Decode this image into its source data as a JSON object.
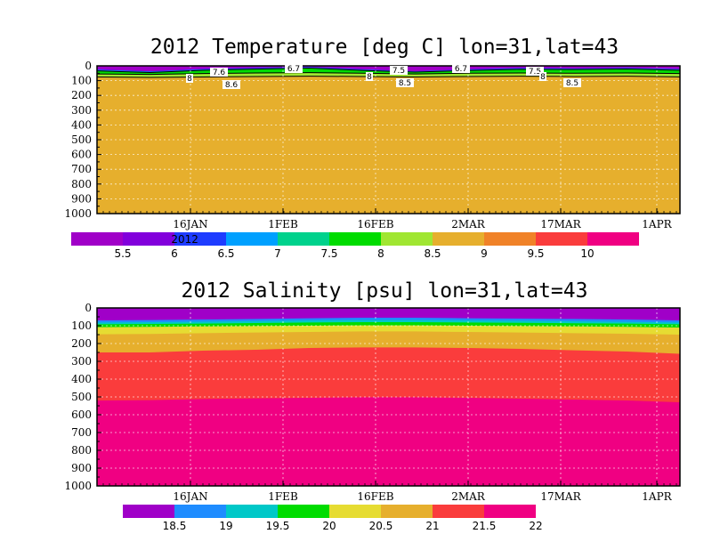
{
  "chart_data": [
    {
      "type": "heatmap",
      "title": "2012 Temperature [deg C] lon=31,lat=43",
      "xlabel": "",
      "ylabel": "",
      "x_tick_labels": [
        "16JAN",
        "1FEB",
        "16FEB",
        "2MAR",
        "17MAR",
        "1APR"
      ],
      "y_tick_labels": [
        "0",
        "100",
        "200",
        "300",
        "400",
        "500",
        "600",
        "700",
        "800",
        "900",
        "1000"
      ],
      "ylim": [
        1000,
        0
      ],
      "grid": true,
      "colorbar": {
        "colors": [
          "#a000c8",
          "#8200dc",
          "#1e3cff",
          "#00a0ff",
          "#00d28c",
          "#00dc00",
          "#a0e632",
          "#e6af2d",
          "#f08228",
          "#fa3c3c",
          "#f00082"
        ],
        "labels": [
          "5.5",
          "6",
          "6.5",
          "7",
          "7.5",
          "8",
          "8.5",
          "9",
          "9.5",
          "10"
        ],
        "inline_label": "2012"
      },
      "layers": [
        {
          "value": "<5.5",
          "color": "#a000c8",
          "boundary_depth": [
            20,
            35,
            18,
            10,
            5,
            20,
            35,
            20,
            12,
            15,
            10,
            20
          ]
        },
        {
          "value": "5.5-6",
          "color": "#8200dc",
          "boundary_depth": [
            25,
            38,
            22,
            14,
            8,
            23,
            37,
            24,
            15,
            18,
            14,
            22
          ]
        },
        {
          "value": "6-6.5",
          "color": "#1e3cff",
          "boundary_depth": [
            28,
            40,
            25,
            17,
            10,
            26,
            38,
            27,
            18,
            20,
            16,
            24
          ]
        },
        {
          "value": "6.5-7",
          "color": "#00a0ff",
          "boundary_depth": [
            30,
            42,
            27,
            19,
            12,
            28,
            40,
            29,
            20,
            22,
            18,
            26
          ]
        },
        {
          "value": "7-7.5",
          "color": "#00d28c",
          "boundary_depth": [
            34,
            45,
            30,
            22,
            15,
            31,
            42,
            32,
            23,
            25,
            21,
            30
          ]
        },
        {
          "value": "7.5-8",
          "color": "#00dc00",
          "boundary_depth": [
            55,
            58,
            52,
            48,
            46,
            50,
            55,
            50,
            48,
            50,
            48,
            52
          ]
        },
        {
          "value": "8-8.5",
          "color": "#a0e632",
          "boundary_depth": [
            75,
            78,
            75,
            72,
            70,
            72,
            75,
            72,
            70,
            72,
            70,
            75
          ]
        },
        {
          "value": "8.5-9",
          "color": "#e6af2d",
          "boundary_depth": [
            1000,
            1000,
            1000,
            1000,
            1000,
            1000,
            1000,
            1000,
            1000,
            1000,
            1000,
            1000
          ]
        }
      ],
      "contour_labels": [
        "7.6",
        "8",
        "8.6",
        "6.7",
        "7.5",
        "8",
        "8.5",
        "6.7",
        "7.5",
        "8",
        "8.5"
      ]
    },
    {
      "type": "heatmap",
      "title": "2012 Salinity [psu] lon=31,lat=43",
      "xlabel": "",
      "ylabel": "",
      "x_tick_labels": [
        "16JAN",
        "1FEB",
        "16FEB",
        "2MAR",
        "17MAR",
        "1APR"
      ],
      "y_tick_labels": [
        "0",
        "100",
        "200",
        "300",
        "400",
        "500",
        "600",
        "700",
        "800",
        "900",
        "1000"
      ],
      "ylim": [
        1000,
        0
      ],
      "grid": true,
      "colorbar": {
        "colors": [
          "#a000c8",
          "#1e8cff",
          "#00c8c8",
          "#00dc00",
          "#e6dc32",
          "#e6af2d",
          "#fa3c3c",
          "#f00082"
        ],
        "labels": [
          "18.5",
          "19",
          "19.5",
          "20",
          "20.5",
          "21",
          "21.5",
          "22"
        ]
      },
      "layers": [
        {
          "value": "18.5-19",
          "color": "#a000c8",
          "boundary_depth": [
            70,
            68,
            65,
            62,
            58,
            55,
            55,
            58,
            60,
            62,
            65,
            70
          ]
        },
        {
          "value": "19-19.5",
          "color": "#1e8cff",
          "boundary_depth": [
            82,
            80,
            77,
            74,
            70,
            68,
            68,
            70,
            72,
            75,
            78,
            82
          ]
        },
        {
          "value": "19.5-20",
          "color": "#00c8c8",
          "boundary_depth": [
            92,
            90,
            88,
            85,
            82,
            80,
            80,
            82,
            84,
            86,
            88,
            92
          ]
        },
        {
          "value": "20-20.5",
          "color": "#00dc00",
          "boundary_depth": [
            108,
            106,
            104,
            102,
            100,
            98,
            98,
            100,
            102,
            104,
            106,
            110
          ]
        },
        {
          "value": "20.5-21",
          "color": "#e6dc32",
          "boundary_depth": [
            148,
            146,
            142,
            138,
            135,
            132,
            132,
            135,
            138,
            142,
            145,
            150
          ]
        },
        {
          "value": "21-21.5",
          "color": "#e6af2d",
          "boundary_depth": [
            250,
            250,
            240,
            235,
            225,
            222,
            222,
            225,
            230,
            238,
            245,
            258
          ]
        },
        {
          "value": "21.5-22",
          "color": "#fa3c3c",
          "boundary_depth": [
            520,
            518,
            512,
            508,
            505,
            502,
            502,
            505,
            510,
            515,
            520,
            530
          ]
        },
        {
          "value": ">22",
          "color": "#f00082",
          "boundary_depth": [
            1000,
            1000,
            1000,
            1000,
            1000,
            1000,
            1000,
            1000,
            1000,
            1000,
            1000,
            1000
          ]
        }
      ]
    }
  ]
}
